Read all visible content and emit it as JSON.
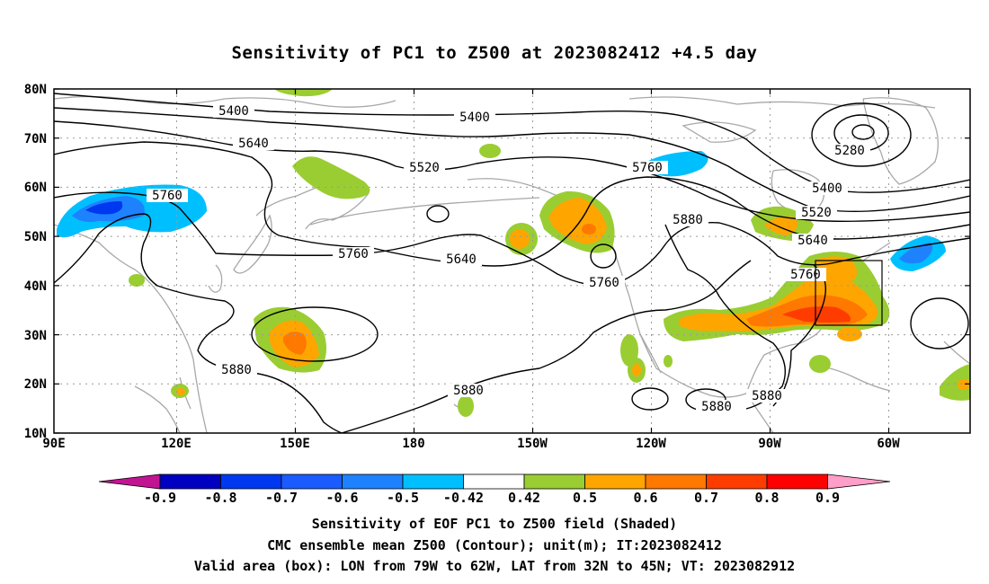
{
  "title": "Sensitivity of PC1 to Z500 at 2023082412 +4.5 day",
  "axes": {
    "lat_labels": [
      "80N",
      "70N",
      "60N",
      "50N",
      "40N",
      "30N",
      "20N",
      "10N"
    ],
    "lon_labels": [
      "90E",
      "120E",
      "150E",
      "180",
      "150W",
      "120W",
      "90W",
      "60W"
    ]
  },
  "contour_labels": [
    "5400",
    "5400",
    "5640",
    "5520",
    "5760",
    "5760",
    "5280",
    "5400",
    "5520",
    "5640",
    "5760",
    "5880",
    "5760",
    "5640",
    "5760",
    "5880",
    "5880",
    "5880",
    "5880"
  ],
  "colorbar": {
    "labels": [
      "-0.9",
      "-0.8",
      "-0.7",
      "-0.6",
      "-0.5",
      "-0.42",
      "0.42",
      "0.5",
      "0.6",
      "0.7",
      "0.8",
      "0.9"
    ],
    "colors": [
      "#c21492",
      "#0000c0",
      "#0038f0",
      "#1a5cff",
      "#1e82ff",
      "#00bfff",
      "#ffffff",
      "#9acd32",
      "#ffa500",
      "#ff7800",
      "#ff3c00",
      "#ff0000",
      "#ff9ec8"
    ]
  },
  "valid_box": {
    "lon_from": "79W",
    "lon_to": "62W",
    "lat_from": "32N",
    "lat_to": "45N"
  },
  "captions": {
    "line1": "Sensitivity of EOF PC1 to Z500 field (Shaded)",
    "line2": "CMC ensemble mean Z500 (Contour); unit(m); IT:2023082412",
    "line3": "Valid area (box): LON from 79W to 62W, LAT from 32N to 45N; VT: 2023082912"
  }
}
